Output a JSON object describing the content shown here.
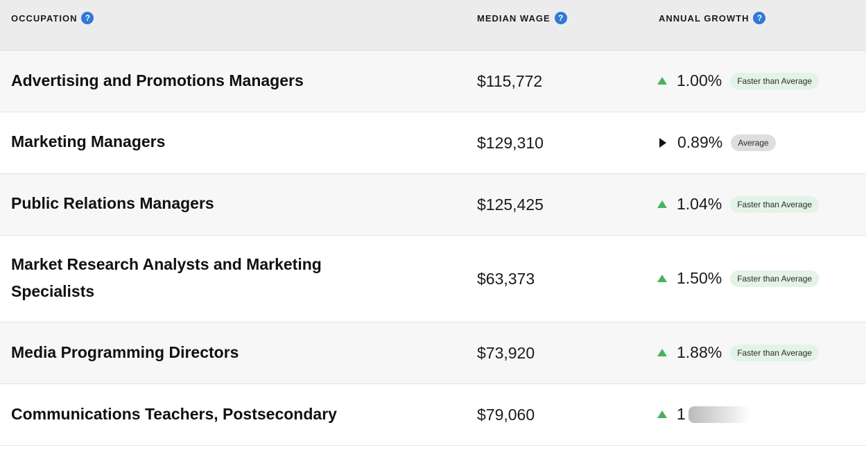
{
  "header": {
    "occupation": "OCCUPATION",
    "median_wage": "MEDIAN WAGE",
    "annual_growth": "ANNUAL GROWTH",
    "help_glyph": "?"
  },
  "rows": [
    {
      "occupation": "Advertising and Promotions Managers",
      "wage": "$115,772",
      "growth": "1.00%",
      "trend": "up",
      "badge": "Faster than Average"
    },
    {
      "occupation": "Marketing Managers",
      "wage": "$129,310",
      "growth": "0.89%",
      "trend": "flat",
      "badge": "Average"
    },
    {
      "occupation": "Public Relations Managers",
      "wage": "$125,425",
      "growth": "1.04%",
      "trend": "up",
      "badge": "Faster than Average"
    },
    {
      "occupation": "Market Research Analysts and Marketing Specialists",
      "wage": "$63,373",
      "growth": "1.50%",
      "trend": "up",
      "badge": "Faster than Average"
    },
    {
      "occupation": "Media Programming Directors",
      "wage": "$73,920",
      "growth": "1.88%",
      "trend": "up",
      "badge": "Faster than Average"
    },
    {
      "occupation": "Communications Teachers, Postsecondary",
      "wage": "$79,060",
      "growth": "1",
      "trend": "up",
      "badge": ""
    }
  ],
  "colors": {
    "help_icon": "#2f78d6",
    "up_arrow": "#4caf60",
    "fast_badge_bg": "#e3f3e6",
    "avg_badge_bg": "#dedede"
  },
  "icons": {
    "help": "question-circle-icon",
    "up": "triangle-up-icon",
    "flat": "triangle-right-icon"
  }
}
